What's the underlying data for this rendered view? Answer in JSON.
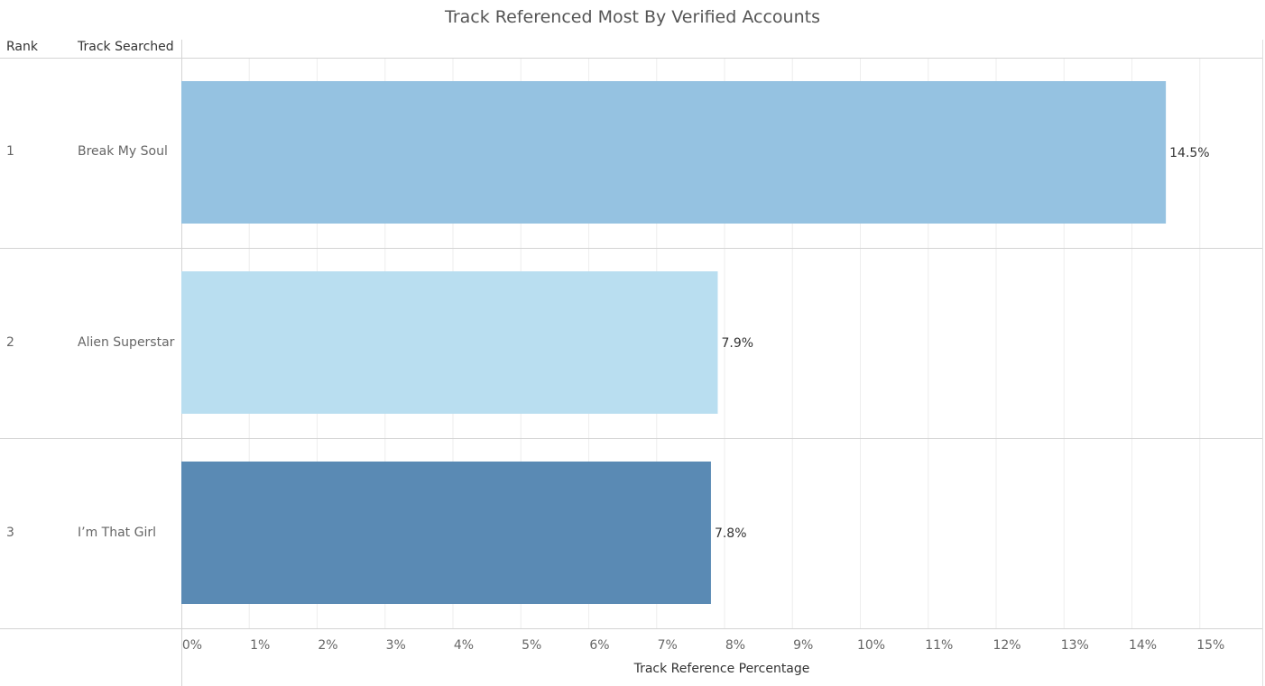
{
  "headers": {
    "rank": "Rank",
    "track": "Track Searched"
  },
  "chart_data": {
    "type": "bar",
    "orientation": "horizontal",
    "title": "Track Referenced Most By Verified Accounts",
    "xlabel": "Track Reference Percentage",
    "ylabel": "",
    "xlim": [
      0,
      15.8
    ],
    "x_ticks": [
      0,
      1,
      2,
      3,
      4,
      5,
      6,
      7,
      8,
      9,
      10,
      11,
      12,
      13,
      14,
      15
    ],
    "x_tick_labels": [
      "0%",
      "1%",
      "2%",
      "3%",
      "4%",
      "5%",
      "6%",
      "7%",
      "8%",
      "9%",
      "10%",
      "11%",
      "12%",
      "13%",
      "14%",
      "15%"
    ],
    "grid": true,
    "rows": [
      {
        "rank": "1",
        "track": "Break My Soul",
        "value": 14.5,
        "label": "14.5%",
        "color": "#95c2e1"
      },
      {
        "rank": "2",
        "track": "Alien Superstar",
        "value": 7.9,
        "label": "7.9%",
        "color": "#b9def0"
      },
      {
        "rank": "3",
        "track": "I’m That Girl",
        "value": 7.8,
        "label": "7.8%",
        "color": "#5a8ab4"
      }
    ]
  }
}
